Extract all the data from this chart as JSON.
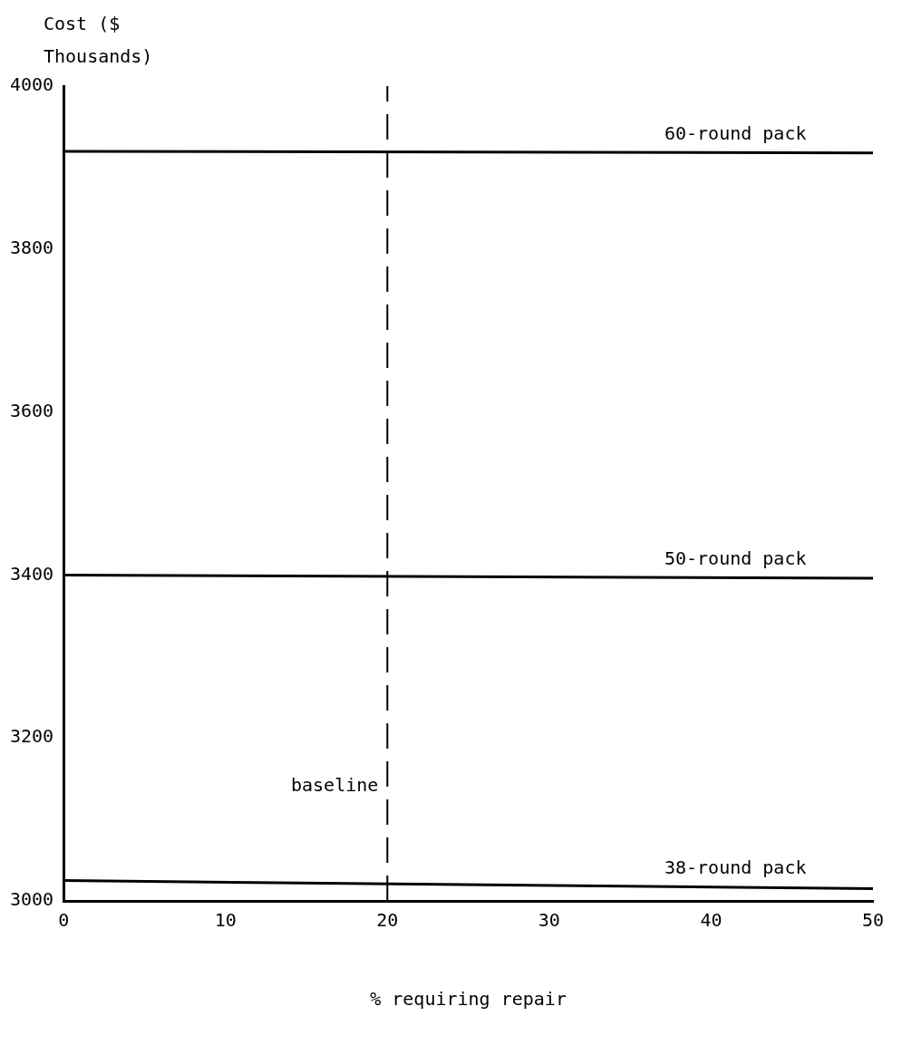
{
  "chart_data": {
    "type": "line",
    "ylabel": "Cost ($ Thousands)",
    "xlabel": "% requiring repair",
    "xlim": [
      0,
      50
    ],
    "xticks": [
      0,
      10,
      20,
      30,
      40,
      50
    ],
    "ylim": [
      3000,
      4000
    ],
    "yticks": [
      3000,
      3200,
      3400,
      3600,
      3800,
      4000
    ],
    "grid": false,
    "legend": false,
    "marker": "none",
    "line_style": "solid",
    "x": [
      0,
      50
    ],
    "series": [
      {
        "name": "60-round pack",
        "color": "#000000",
        "values": [
          3920,
          3918
        ]
      },
      {
        "name": "50-round pack",
        "color": "#000000",
        "values": [
          3400,
          3396
        ]
      },
      {
        "name": "38-round pack",
        "color": "#000000",
        "values": [
          3025,
          3015
        ]
      }
    ],
    "ref_lines": [
      {
        "axis": "x",
        "value": 20,
        "label": "baseline",
        "line_style": "dashed",
        "color": "#000000"
      }
    ]
  }
}
